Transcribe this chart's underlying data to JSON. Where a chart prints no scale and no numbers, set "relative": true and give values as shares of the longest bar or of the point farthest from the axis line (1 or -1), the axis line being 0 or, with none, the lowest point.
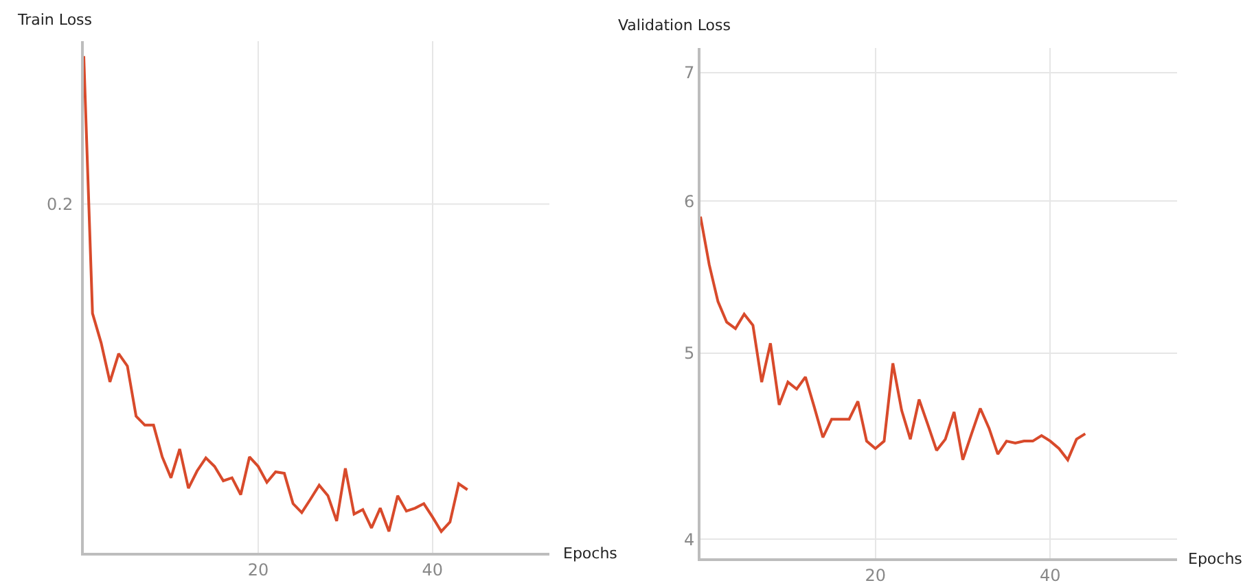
{
  "chart_data": [
    {
      "type": "line",
      "title": "Train Loss",
      "xlabel": "Epochs",
      "relative": true,
      "grid": "x",
      "line_style": "solid",
      "x": [
        0,
        1,
        2,
        3,
        4,
        5,
        6,
        7,
        8,
        9,
        10,
        11,
        12,
        13,
        14,
        15,
        16,
        17,
        18,
        19,
        20,
        21,
        22,
        23,
        24,
        25,
        26,
        27,
        28,
        29,
        30,
        31,
        32,
        33,
        34,
        35,
        36,
        37,
        38,
        39,
        40,
        41,
        42,
        43,
        44
      ],
      "xlim": [
        0,
        53.4
      ],
      "xticks": [
        20,
        40
      ],
      "series": [
        {
          "color": "#d84a2b",
          "values": [
            1.0,
            0.482,
            0.422,
            0.344,
            0.401,
            0.376,
            0.275,
            0.257,
            0.257,
            0.193,
            0.151,
            0.209,
            0.13,
            0.165,
            0.191,
            0.174,
            0.145,
            0.151,
            0.117,
            0.193,
            0.174,
            0.142,
            0.163,
            0.16,
            0.099,
            0.081,
            0.108,
            0.136,
            0.115,
            0.064,
            0.17,
            0.078,
            0.087,
            0.05,
            0.09,
            0.043,
            0.115,
            0.084,
            0.09,
            0.099,
            0.072,
            0.043,
            0.062,
            0.139,
            0.127
          ]
        }
      ],
      "ref_lines": [
        {
          "axis": "y",
          "value": 0.702,
          "color": "#e6e6e6"
        }
      ],
      "annotations": [
        "0.2"
      ]
    },
    {
      "type": "line",
      "title": "Validation Loss",
      "xlabel": "Epochs",
      "log": "y",
      "grid": true,
      "line_style": "solid",
      "x": [
        0,
        1,
        2,
        3,
        4,
        5,
        6,
        7,
        8,
        9,
        10,
        11,
        12,
        13,
        14,
        15,
        16,
        17,
        18,
        19,
        20,
        21,
        22,
        23,
        24,
        25,
        26,
        27,
        28,
        29,
        30,
        31,
        32,
        33,
        34,
        35,
        36,
        37,
        38,
        39,
        40,
        41,
        42,
        43,
        44
      ],
      "xlim": [
        0,
        54.5
      ],
      "xticks": [
        20,
        40
      ],
      "ylim": [
        3.91,
        7.21
      ],
      "yticks": [
        4,
        5,
        6,
        7
      ],
      "series": [
        {
          "color": "#d84a2b",
          "values": [
            5.89,
            5.56,
            5.32,
            5.19,
            5.15,
            5.24,
            5.17,
            4.83,
            5.06,
            4.7,
            4.83,
            4.79,
            4.86,
            4.69,
            4.52,
            4.62,
            4.62,
            4.62,
            4.72,
            4.5,
            4.46,
            4.5,
            4.94,
            4.67,
            4.51,
            4.73,
            4.59,
            4.45,
            4.51,
            4.66,
            4.4,
            4.54,
            4.68,
            4.57,
            4.43,
            4.5,
            4.49,
            4.5,
            4.5,
            4.53,
            4.5,
            4.46,
            4.4,
            4.51,
            4.54
          ]
        }
      ]
    }
  ]
}
